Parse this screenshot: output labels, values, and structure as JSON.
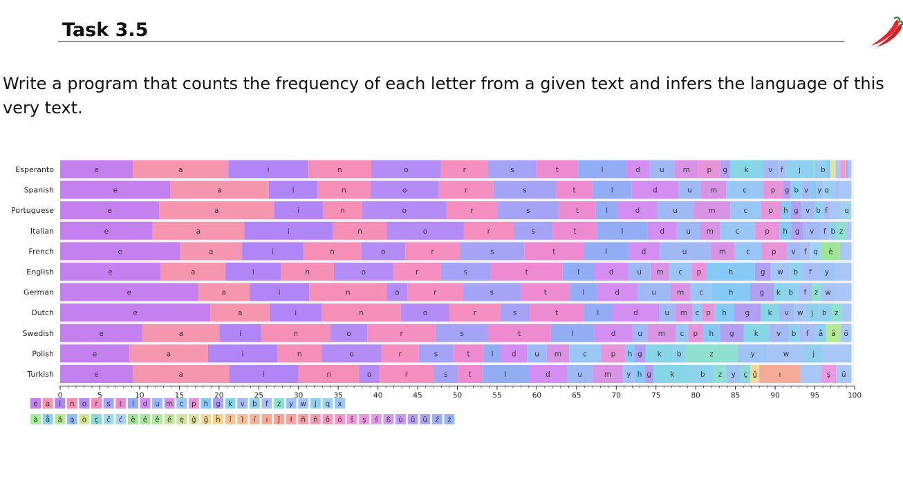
{
  "header": {
    "title": "Task 3.5",
    "icon": "chili-peppers-icon",
    "accent_color": "#e8252a"
  },
  "description": "Write a program that counts the frequency of each letter from a given text and infers the language of this very text.",
  "chart_data": {
    "type": "bar",
    "orientation": "horizontal",
    "stacked": true,
    "title": "",
    "xlabel": "",
    "ylabel": "",
    "xlim": [
      0,
      100
    ],
    "xticks": [
      "0",
      "5",
      "10",
      "15",
      "20",
      "25",
      "30",
      "35",
      "40",
      "45",
      "50",
      "55",
      "60",
      "65",
      "70",
      "75",
      "80",
      "85",
      "90",
      "95",
      "100"
    ],
    "categories": [
      "Esperanto",
      "Spanish",
      "Portuguese",
      "Italian",
      "French",
      "English",
      "German",
      "Dutch",
      "Swedish",
      "Polish",
      "Turkish"
    ],
    "rows": [
      {
        "language": "Esperanto",
        "segments": [
          [
            "e",
            9.2
          ],
          [
            "a",
            12.1
          ],
          [
            "i",
            10.1
          ],
          [
            "n",
            8.0
          ],
          [
            "o",
            8.8
          ],
          [
            "r",
            6.0
          ],
          [
            "s",
            6.1
          ],
          [
            "t",
            5.3
          ],
          [
            "l",
            6.1
          ],
          [
            "d",
            2.9
          ],
          [
            "u",
            3.2
          ],
          [
            "m",
            3.0
          ],
          [
            "p",
            2.8
          ],
          [
            "g",
            1.2
          ],
          [
            "k",
            4.2
          ],
          [
            "v",
            1.9
          ],
          [
            "f",
            1.0
          ],
          [
            "j",
            3.5
          ],
          [
            "z",
            0.2
          ],
          [
            "c",
            0.5
          ],
          [
            "b",
            1.0
          ],
          [
            "h",
            0.4
          ],
          [
            "ĝ",
            0.7
          ],
          [
            "ĉ",
            0.6
          ],
          [
            "ŝ",
            0.6
          ],
          [
            "ĵ",
            0.1
          ],
          [
            "ŭ",
            0.3
          ],
          [
            "misc",
            0.4
          ]
        ]
      },
      {
        "language": "Spanish",
        "segments": [
          [
            "e",
            14.0
          ],
          [
            "a",
            12.5
          ],
          [
            "i",
            6.2
          ],
          [
            "n",
            6.7
          ],
          [
            "o",
            8.7
          ],
          [
            "r",
            6.9
          ],
          [
            "s",
            8.0
          ],
          [
            "t",
            4.6
          ],
          [
            "l",
            5.0
          ],
          [
            "d",
            5.9
          ],
          [
            "u",
            2.9
          ],
          [
            "m",
            3.2
          ],
          [
            "c",
            4.7
          ],
          [
            "p",
            2.5
          ],
          [
            "g",
            1.0
          ],
          [
            "b",
            1.4
          ],
          [
            "v",
            1.1
          ],
          [
            "h",
            0.7
          ],
          [
            "y",
            0.9
          ],
          [
            "q",
            0.9
          ],
          [
            "j",
            0.4
          ],
          [
            "f",
            0.7
          ],
          [
            "misc",
            1.6
          ]
        ]
      },
      {
        "language": "Portuguese",
        "segments": [
          [
            "e",
            12.6
          ],
          [
            "a",
            14.6
          ],
          [
            "i",
            6.2
          ],
          [
            "n",
            5.0
          ],
          [
            "o",
            10.7
          ],
          [
            "r",
            6.5
          ],
          [
            "s",
            7.8
          ],
          [
            "t",
            4.7
          ],
          [
            "l",
            2.8
          ],
          [
            "d",
            5.0
          ],
          [
            "u",
            4.6
          ],
          [
            "m",
            4.7
          ],
          [
            "c",
            3.9
          ],
          [
            "p",
            2.5
          ],
          [
            "h",
            1.3
          ],
          [
            "g",
            1.3
          ],
          [
            "v",
            1.7
          ],
          [
            "b",
            1.0
          ],
          [
            "f",
            1.0
          ],
          [
            "misc",
            1.5
          ],
          [
            "q",
            1.2
          ]
        ]
      },
      {
        "language": "Italian",
        "segments": [
          [
            "e",
            11.8
          ],
          [
            "a",
            11.7
          ],
          [
            "i",
            11.3
          ],
          [
            "n",
            6.9
          ],
          [
            "o",
            9.8
          ],
          [
            "r",
            6.4
          ],
          [
            "s",
            5.0
          ],
          [
            "t",
            5.6
          ],
          [
            "l",
            6.5
          ],
          [
            "d",
            3.7
          ],
          [
            "u",
            3.0
          ],
          [
            "m",
            2.5
          ],
          [
            "c",
            4.5
          ],
          [
            "p",
            3.1
          ],
          [
            "h",
            1.5
          ],
          [
            "g",
            1.6
          ],
          [
            "v",
            2.1
          ],
          [
            "f",
            1.2
          ],
          [
            "b",
            0.9
          ],
          [
            "z",
            1.2
          ],
          [
            "misc",
            0.7
          ]
        ]
      },
      {
        "language": "French",
        "segments": [
          [
            "e",
            14.7
          ],
          [
            "a",
            7.6
          ],
          [
            "i",
            7.5
          ],
          [
            "n",
            7.1
          ],
          [
            "o",
            5.4
          ],
          [
            "r",
            6.7
          ],
          [
            "s",
            7.9
          ],
          [
            "t",
            7.3
          ],
          [
            "l",
            5.5
          ],
          [
            "d",
            3.7
          ],
          [
            "u",
            6.3
          ],
          [
            "m",
            3.0
          ],
          [
            "c",
            3.3
          ],
          [
            "p",
            3.0
          ],
          [
            "v",
            1.8
          ],
          [
            "f",
            1.1
          ],
          [
            "q",
            1.4
          ],
          [
            "è",
            2.3
          ],
          [
            "misc",
            1.4
          ]
        ]
      },
      {
        "language": "English",
        "segments": [
          [
            "e",
            12.7
          ],
          [
            "a",
            8.2
          ],
          [
            "i",
            7.0
          ],
          [
            "n",
            6.7
          ],
          [
            "o",
            7.5
          ],
          [
            "r",
            6.0
          ],
          [
            "s",
            6.3
          ],
          [
            "t",
            9.1
          ],
          [
            "l",
            4.0
          ],
          [
            "d",
            4.3
          ],
          [
            "u",
            2.8
          ],
          [
            "m",
            2.4
          ],
          [
            "c",
            2.8
          ],
          [
            "p",
            1.9
          ],
          [
            "h",
            6.1
          ],
          [
            "g",
            2.0
          ],
          [
            "w",
            2.4
          ],
          [
            "b",
            1.5
          ],
          [
            "f",
            2.2
          ],
          [
            "y",
            2.0
          ],
          [
            "misc",
            2.1
          ]
        ]
      },
      {
        "language": "German",
        "segments": [
          [
            "e",
            17.4
          ],
          [
            "a",
            6.5
          ],
          [
            "i",
            7.5
          ],
          [
            "n",
            9.8
          ],
          [
            "o",
            2.6
          ],
          [
            "r",
            7.0
          ],
          [
            "s",
            7.3
          ],
          [
            "t",
            6.2
          ],
          [
            "l",
            3.4
          ],
          [
            "d",
            5.1
          ],
          [
            "u",
            4.2
          ],
          [
            "m",
            2.5
          ],
          [
            "c",
            2.7
          ],
          [
            "h",
            4.8
          ],
          [
            "g",
            3.0
          ],
          [
            "k",
            1.2
          ],
          [
            "b",
            1.9
          ],
          [
            "f",
            1.7
          ],
          [
            "z",
            1.1
          ],
          [
            "w",
            1.9
          ],
          [
            "misc",
            2.0
          ]
        ]
      },
      {
        "language": "Dutch",
        "segments": [
          [
            "e",
            18.9
          ],
          [
            "a",
            7.5
          ],
          [
            "i",
            6.5
          ],
          [
            "n",
            10.0
          ],
          [
            "o",
            6.1
          ],
          [
            "r",
            6.4
          ],
          [
            "s",
            3.7
          ],
          [
            "t",
            6.8
          ],
          [
            "l",
            3.6
          ],
          [
            "d",
            5.9
          ],
          [
            "u",
            2.0
          ],
          [
            "m",
            2.2
          ],
          [
            "c",
            1.2
          ],
          [
            "p",
            1.6
          ],
          [
            "h",
            2.4
          ],
          [
            "g",
            3.4
          ],
          [
            "k",
            2.3
          ],
          [
            "v",
            1.9
          ],
          [
            "w",
            1.5
          ],
          [
            "j",
            1.5
          ],
          [
            "b",
            1.6
          ],
          [
            "z",
            1.4
          ],
          [
            "misc",
            1.2
          ]
        ]
      },
      {
        "language": "Swedish",
        "segments": [
          [
            "e",
            10.1
          ],
          [
            "a",
            9.4
          ],
          [
            "i",
            5.1
          ],
          [
            "n",
            8.5
          ],
          [
            "o",
            4.5
          ],
          [
            "r",
            8.4
          ],
          [
            "s",
            6.4
          ],
          [
            "t",
            7.7
          ],
          [
            "l",
            5.3
          ],
          [
            "d",
            4.7
          ],
          [
            "u",
            1.8
          ],
          [
            "m",
            3.5
          ],
          [
            "c",
            1.5
          ],
          [
            "p",
            1.8
          ],
          [
            "h",
            2.1
          ],
          [
            "g",
            2.9
          ],
          [
            "k",
            3.1
          ],
          [
            "v",
            2.4
          ],
          [
            "b",
            1.3
          ],
          [
            "f",
            2.0
          ],
          [
            "å",
            1.3
          ],
          [
            "ä",
            1.8
          ],
          [
            "ö",
            1.3
          ]
        ]
      },
      {
        "language": "Polish",
        "segments": [
          [
            "e",
            8.7
          ],
          [
            "a",
            9.9
          ],
          [
            "i",
            8.7
          ],
          [
            "n",
            5.6
          ],
          [
            "o",
            7.5
          ],
          [
            "r",
            4.7
          ],
          [
            "s",
            4.3
          ],
          [
            "t",
            3.9
          ],
          [
            "l",
            2.1
          ],
          [
            "d",
            3.3
          ],
          [
            "u",
            2.5
          ],
          [
            "m",
            2.8
          ],
          [
            "c",
            4.0
          ],
          [
            "p",
            3.1
          ],
          [
            "h",
            1.1
          ],
          [
            "g",
            1.4
          ],
          [
            "k",
            3.5
          ],
          [
            "b",
            1.5
          ],
          [
            "z",
            6.6
          ],
          [
            "y",
            3.8
          ],
          [
            "w",
            4.6
          ],
          [
            "j",
            2.3
          ],
          [
            "misc",
            3.6
          ]
        ]
      },
      {
        "language": "Turkish",
        "segments": [
          [
            "e",
            9.0
          ],
          [
            "a",
            11.9
          ],
          [
            "i",
            8.6
          ],
          [
            "n",
            7.5
          ],
          [
            "o",
            2.5
          ],
          [
            "r",
            6.7
          ],
          [
            "s",
            3.0
          ],
          [
            "t",
            3.0
          ],
          [
            "l",
            5.8
          ],
          [
            "d",
            4.7
          ],
          [
            "u",
            3.2
          ],
          [
            "m",
            3.7
          ],
          [
            "y",
            1.5
          ],
          [
            "h",
            1.2
          ],
          [
            "g",
            1.1
          ],
          [
            "k",
            4.7
          ],
          [
            "b",
            2.8
          ],
          [
            "z",
            1.5
          ],
          [
            "y",
            1.8
          ],
          [
            "ç",
            1.2
          ],
          [
            "ğ",
            1.1
          ],
          [
            "ı",
            5.1
          ],
          [
            "misc",
            2.6
          ],
          [
            "ş",
            1.8
          ],
          [
            "ü",
            1.9
          ]
        ]
      }
    ],
    "legend_rows": [
      [
        "e",
        "a",
        "i",
        "n",
        "o",
        "r",
        "s",
        "t",
        "l",
        "d",
        "u",
        "m",
        "c",
        "p",
        "h",
        "g",
        "k",
        "v",
        "b",
        "f",
        "z",
        "y",
        "w",
        "j",
        "q",
        "x"
      ],
      [
        "à",
        "å",
        "ä",
        "ą",
        "ò",
        "ç",
        "č",
        "ć",
        "è",
        "é",
        "ê",
        "ě",
        "ę",
        "ĝ",
        "ğ",
        "ĥ",
        "î",
        "ì",
        "ï",
        "ı",
        "ĵ",
        "ł",
        "ñ",
        "ń",
        "ô",
        "ó",
        "ŝ",
        "ş",
        "ś",
        "ß",
        "ù",
        "û",
        "ŭ",
        "ź",
        "ż"
      ]
    ],
    "colors": {
      "e": "#c580f0",
      "a": "#f596ae",
      "i": "#b085f5",
      "n": "#f58fb5",
      "o": "#b38cf5",
      "r": "#f58fc0",
      "s": "#a5a3f5",
      "t": "#ee8bd0",
      "l": "#93adf5",
      "d": "#d48df0",
      "u": "#9fb9f5",
      "m": "#d893e4",
      "c": "#98c7f5",
      "p": "#e894d8",
      "h": "#85c9f5",
      "g": "#b29ff2",
      "k": "#87d6e8",
      "v": "#a4baf5",
      "b": "#8fd2f0",
      "f": "#a9bff5",
      "z": "#8fe0cf",
      "y": "#9ec4f5",
      "w": "#a6c4f5",
      "j": "#8ed0ee",
      "q": "#9fd3f0",
      "x": "#a2c8f5",
      "à": "#a4ee9c",
      "å": "#8fd0f0",
      "ä": "#b5ea92",
      "ą": "#90bdf5",
      "ò": "#d5e690",
      "ç": "#8ed8d5",
      "č": "#9ed9f5",
      "ć": "#a9d6f5",
      "è": "#a0e596",
      "é": "#a8e6a0",
      "ê": "#b4e6a4",
      "ě": "#c4e59e",
      "ę": "#d1e69c",
      "ĝ": "#e1e4a0",
      "ğ": "#f2d89a",
      "ĥ": "#f7d38d",
      "î": "#f6c494",
      "ì": "#f6bc96",
      "ï": "#f6b596",
      "ı": "#f5ab98",
      "ĵ": "#f5a59c",
      "ł": "#f6a4a0",
      "ñ": "#f59fa9",
      "ń": "#f49ab6",
      "ô": "#f49ac2",
      "ó": "#f499cc",
      "ŝ": "#f39ad6",
      "ş": "#eb9ae2",
      "ś": "#e29ae9",
      "ß": "#d49aef",
      "ù": "#c69cf2",
      "û": "#b8a0f4",
      "ŭ": "#aca6f5",
      "ź": "#a0aef5",
      "ż": "#98b6f5",
      "misc": "#a8c7f6"
    }
  }
}
